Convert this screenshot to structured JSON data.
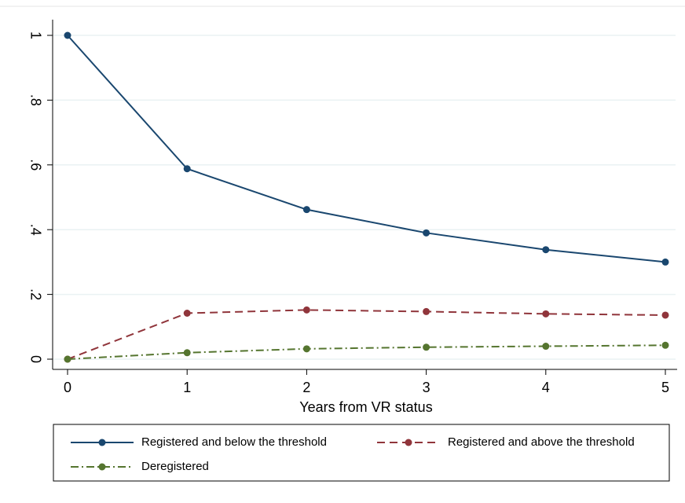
{
  "chart_data": {
    "type": "line",
    "x_label": "Years from VR status",
    "x": [
      0,
      1,
      2,
      3,
      4,
      5
    ],
    "series": [
      {
        "name": "Registered and below the threshold",
        "color": "#1a476f",
        "dash": "solid",
        "values": [
          1,
          0.588,
          0.462,
          0.39,
          0.338,
          0.3
        ]
      },
      {
        "name": "Registered and above the threshold",
        "color": "#90353b",
        "dash": "dashed",
        "values": [
          0,
          0.142,
          0.152,
          0.147,
          0.14,
          0.136
        ]
      },
      {
        "name": "Deregistered",
        "color": "#55752f",
        "dash": "dash-dot",
        "values": [
          0,
          0.02,
          0.032,
          0.037,
          0.04,
          0.043
        ]
      }
    ],
    "xlim": [
      0,
      5
    ],
    "xticks": [
      0,
      1,
      2,
      3,
      4,
      5
    ],
    "ylim": [
      0,
      1
    ],
    "yticks": [
      0,
      {
        "value": 0.2,
        "label": ".2"
      },
      {
        "value": 0.4,
        "label": ".4"
      },
      {
        "value": 0.6,
        "label": ".6"
      },
      {
        "value": 0.8,
        "label": ".8"
      },
      1
    ],
    "grid": true
  }
}
